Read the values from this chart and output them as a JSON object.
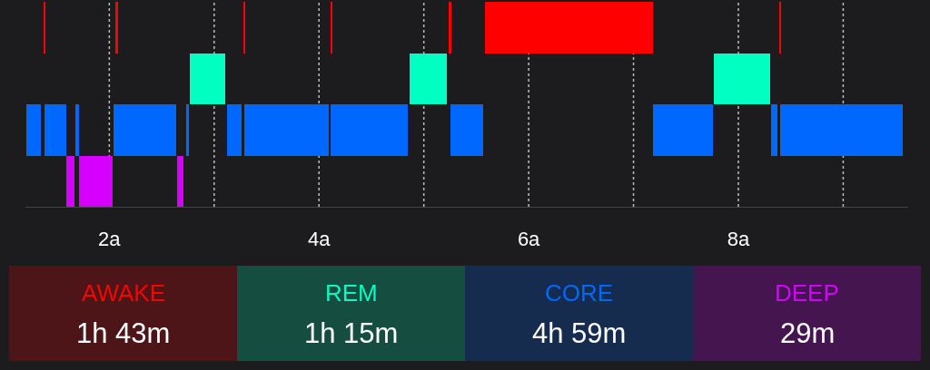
{
  "chart_data": {
    "type": "bar",
    "orientation": "horizontal",
    "categories": [
      null,
      null,
      null,
      null
    ],
    "series": [
      {
        "colors": [
          "#ff0000",
          "#00ffc0",
          "#0068ff",
          "#d600ff"
        ],
        "base": [
          1.37,
          2.77,
          1.21,
          1.59
        ],
        "values": [
          0.02,
          0.34,
          0.14,
          0.08
        ]
      },
      {
        "colors": [
          "#ff0000",
          "#00ffc0",
          "#0068ff",
          "#d600ff"
        ],
        "base": [
          2.06,
          4.86,
          1.38,
          1.71
        ],
        "values": [
          0.02,
          0.36,
          0.21,
          0.32
        ]
      },
      {
        "colors": [
          "#ff0000",
          "#00ffc0",
          "#0068ff",
          "#d600ff"
        ],
        "base": [
          3.28,
          7.77,
          1.68,
          2.65
        ],
        "values": [
          0.02,
          0.53,
          0.03,
          0.06
        ]
      },
      {
        "colors": [
          "#ff0000",
          "#00ffc0",
          "#0068ff",
          "#d600ff"
        ],
        "base": [
          4.11,
          null,
          2.04,
          null
        ],
        "values": [
          0.02,
          null,
          0.6,
          null
        ]
      },
      {
        "colors": [
          "#ff0000",
          "#00ffc0",
          "#0068ff",
          "#d600ff"
        ],
        "base": [
          5.24,
          null,
          2.73,
          null
        ],
        "values": [
          0.02,
          null,
          0.03,
          null
        ]
      },
      {
        "colors": [
          "#ff0000",
          "#00ffc0",
          "#0068ff",
          "#d600ff"
        ],
        "base": [
          5.58,
          null,
          3.12,
          null
        ],
        "values": [
          1.61,
          null,
          0.14,
          null
        ]
      },
      {
        "colors": [
          "#ff0000",
          "#00ffc0",
          "#0068ff",
          "#d600ff"
        ],
        "base": [
          8.39,
          null,
          3.29,
          null
        ],
        "values": [
          0.02,
          null,
          0.8,
          null
        ]
      },
      {
        "colors": [
          "#ff0000",
          "#00ffc0",
          "#0068ff",
          "#d600ff"
        ],
        "base": [
          null,
          null,
          4.11,
          null
        ],
        "values": [
          null,
          null,
          0.74,
          null
        ]
      },
      {
        "colors": [
          "#ff0000",
          "#00ffc0",
          "#0068ff",
          "#d600ff"
        ],
        "base": [
          null,
          null,
          5.25,
          null
        ],
        "values": [
          null,
          null,
          0.32,
          null
        ]
      },
      {
        "colors": [
          "#ff0000",
          "#00ffc0",
          "#0068ff",
          "#d600ff"
        ],
        "base": [
          null,
          null,
          7.19,
          null
        ],
        "values": [
          null,
          null,
          0.57,
          null
        ]
      },
      {
        "colors": [
          "#ff0000",
          "#00ffc0",
          "#0068ff",
          "#d600ff"
        ],
        "base": [
          null,
          null,
          8.31,
          null
        ],
        "values": [
          null,
          null,
          0.06,
          null
        ]
      },
      {
        "colors": [
          "#ff0000",
          "#00ffc0",
          "#0068ff",
          "#d600ff"
        ],
        "base": [
          null,
          null,
          8.4,
          null
        ],
        "values": [
          null,
          null,
          1.17,
          null
        ]
      }
    ],
    "xlim": [
      1.2,
      9.62
    ],
    "xticks": [
      {
        "value": 2,
        "label": "2a"
      },
      {
        "value": 3,
        "label": null
      },
      {
        "value": 4,
        "label": "4a"
      },
      {
        "value": 5,
        "label": null
      },
      {
        "value": 6,
        "label": "6a"
      },
      {
        "value": 7,
        "label": null
      },
      {
        "value": 8,
        "label": "8a"
      },
      {
        "value": 9,
        "label": null
      }
    ],
    "grid": "x",
    "legend": false,
    "tick_labels": "x",
    "annotations": [
      "AWAKE",
      "1h 43m",
      "REM",
      "1h 15m",
      "CORE",
      "4h 59m",
      "DEEP",
      "29m"
    ]
  }
}
